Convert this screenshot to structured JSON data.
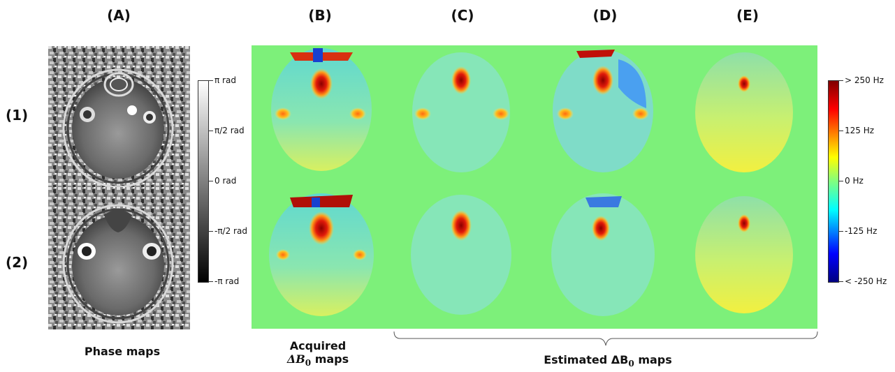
{
  "columns": [
    "(A)",
    "(B)",
    "(C)",
    "(D)",
    "(E)"
  ],
  "rows": [
    "(1)",
    "(2)"
  ],
  "phase_colorbar": {
    "ticks": [
      "π rad",
      "π/2 rad",
      "0 rad",
      "-π/2 rad",
      "-π rad"
    ],
    "gradient": [
      "#ffffff",
      "#000000"
    ]
  },
  "b0_colorbar": {
    "ticks": [
      "> 250 Hz",
      "125 Hz",
      "0 Hz",
      "-125 Hz",
      "< -250 Hz"
    ],
    "gradient": [
      "#800000",
      "#ff0000",
      "#ffff00",
      "#80ff80",
      "#00ffff",
      "#0000ff",
      "#000080"
    ]
  },
  "captions": {
    "phase_maps": "Phase maps",
    "acquired_line1": "Acquired",
    "acquired_line2": "ΔB",
    "estimated_text": "Estimated ΔB",
    "estimated_suffix": "maps",
    "acquired_suffix": "maps",
    "subscript": "0"
  },
  "colors": {
    "background_field": "#7df07a",
    "hot": "#c8100a",
    "warm": "#ffd23a",
    "cool": "#3ab7ff"
  }
}
